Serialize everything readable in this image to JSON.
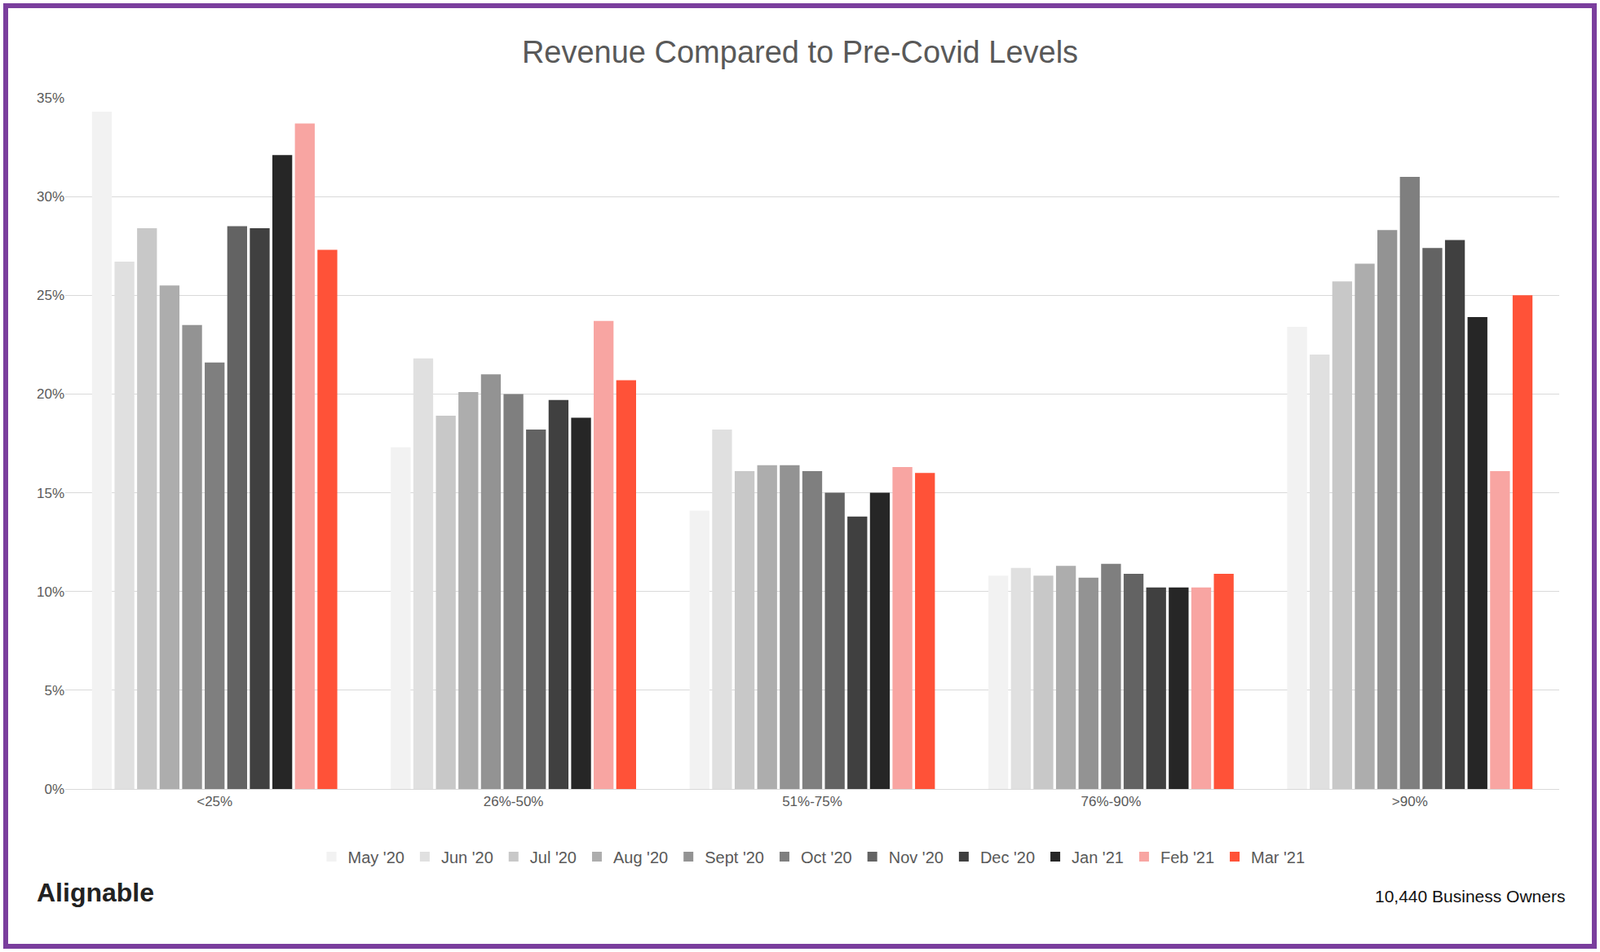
{
  "chart_data": {
    "type": "bar",
    "title": "Revenue Compared to Pre-Covid Levels",
    "categories": [
      "<25%",
      "26%-50%",
      "51%-75%",
      "76%-90%",
      ">90%"
    ],
    "series": [
      {
        "name": "May '20",
        "color": "#f2f2f2",
        "values": [
          34.3,
          17.3,
          14.1,
          10.8,
          23.4
        ]
      },
      {
        "name": "Jun '20",
        "color": "#e0e0e0",
        "values": [
          26.7,
          21.8,
          18.2,
          11.2,
          22.0
        ]
      },
      {
        "name": "Jul '20",
        "color": "#c8c8c8",
        "values": [
          28.4,
          18.9,
          16.1,
          10.8,
          25.7
        ]
      },
      {
        "name": "Aug '20",
        "color": "#adadad",
        "values": [
          25.5,
          20.1,
          16.4,
          11.3,
          26.6
        ]
      },
      {
        "name": "Sept '20",
        "color": "#939393",
        "values": [
          23.5,
          21.0,
          16.4,
          10.7,
          28.3
        ]
      },
      {
        "name": "Oct '20",
        "color": "#7f7f7f",
        "values": [
          21.6,
          20.0,
          16.1,
          11.4,
          31.0
        ]
      },
      {
        "name": "Nov '20",
        "color": "#636363",
        "values": [
          28.5,
          18.2,
          15.0,
          10.9,
          27.4
        ]
      },
      {
        "name": "Dec '20",
        "color": "#404040",
        "values": [
          28.4,
          19.7,
          13.8,
          10.2,
          27.8
        ]
      },
      {
        "name": "Jan '21",
        "color": "#262626",
        "values": [
          32.1,
          18.8,
          15.0,
          10.2,
          23.9
        ]
      },
      {
        "name": "Feb '21",
        "color": "#f8a5a2",
        "values": [
          33.7,
          23.7,
          16.3,
          10.2,
          16.1
        ]
      },
      {
        "name": "Mar '21",
        "color": "#ff5238",
        "values": [
          27.3,
          20.7,
          16.0,
          10.9,
          25.0
        ]
      }
    ],
    "ylim": [
      0,
      35
    ],
    "yticks": [
      {
        "value": 0,
        "label": "0%"
      },
      {
        "value": 5,
        "label": "5%"
      },
      {
        "value": 10,
        "label": "10%"
      },
      {
        "value": 15,
        "label": "15%"
      },
      {
        "value": 20,
        "label": "20%"
      },
      {
        "value": 25,
        "label": "25%"
      },
      {
        "value": 30,
        "label": "30%"
      },
      {
        "value": 35,
        "label": "35%"
      }
    ],
    "grid": true,
    "legend": "bottom",
    "annotations": [
      "Alignable",
      "10,440 Business Owners"
    ]
  }
}
